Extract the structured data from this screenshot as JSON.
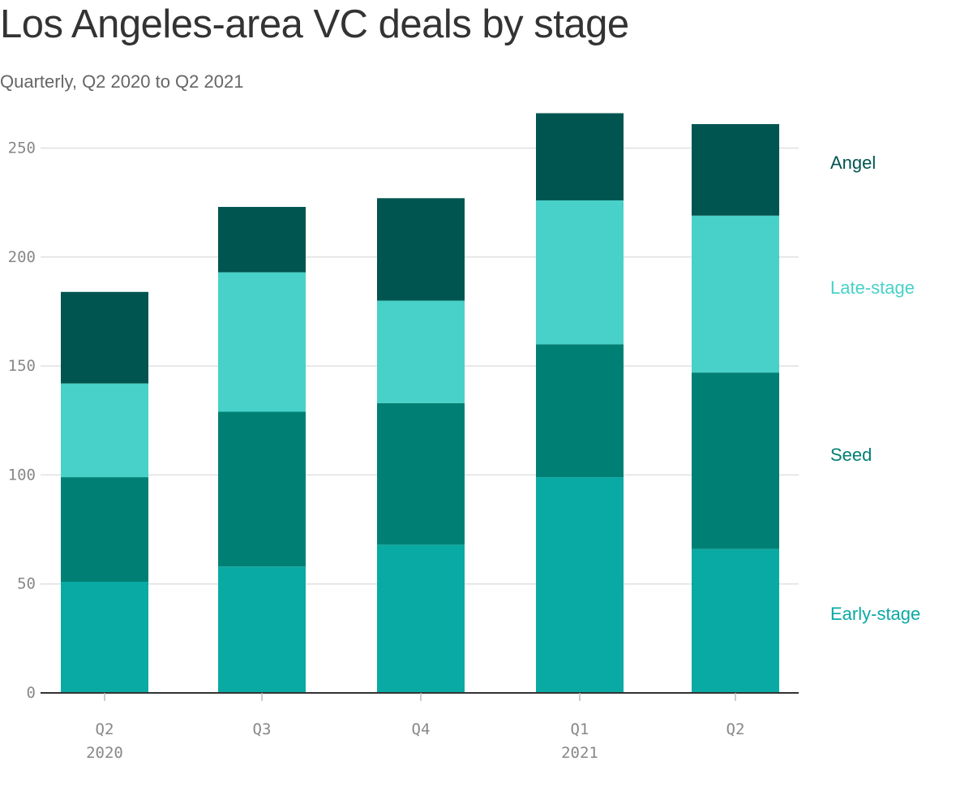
{
  "title": "Los Angeles-area VC deals by stage",
  "subtitle": "Quarterly, Q2 2020 to Q2 2021",
  "chart_data": {
    "type": "bar",
    "stacked": true,
    "categories": [
      "Q2 2020",
      "Q3",
      "Q4",
      "Q1 2021",
      "Q2"
    ],
    "x_tick_labels": [
      {
        "line1": "Q2",
        "line2": "2020"
      },
      {
        "line1": "Q3",
        "line2": ""
      },
      {
        "line1": "Q4",
        "line2": ""
      },
      {
        "line1": "Q1",
        "line2": "2021"
      },
      {
        "line1": "Q2",
        "line2": ""
      }
    ],
    "series": [
      {
        "name": "Early-stage",
        "color": "#0aaaa4",
        "values": [
          51,
          58,
          68,
          99,
          66
        ]
      },
      {
        "name": "Seed",
        "color": "#008075",
        "values": [
          48,
          71,
          65,
          61,
          81
        ]
      },
      {
        "name": "Late-stage",
        "color": "#48d1c8",
        "values": [
          43,
          64,
          47,
          66,
          72
        ]
      },
      {
        "name": "Angel",
        "color": "#005550",
        "values": [
          42,
          30,
          47,
          40,
          42
        ]
      }
    ],
    "legend_placement": "right",
    "ylim": [
      0,
      270
    ],
    "yticks": [
      "0",
      "50",
      "100",
      "150",
      "200",
      "250"
    ],
    "grid": true,
    "xlabel": "",
    "ylabel": ""
  }
}
